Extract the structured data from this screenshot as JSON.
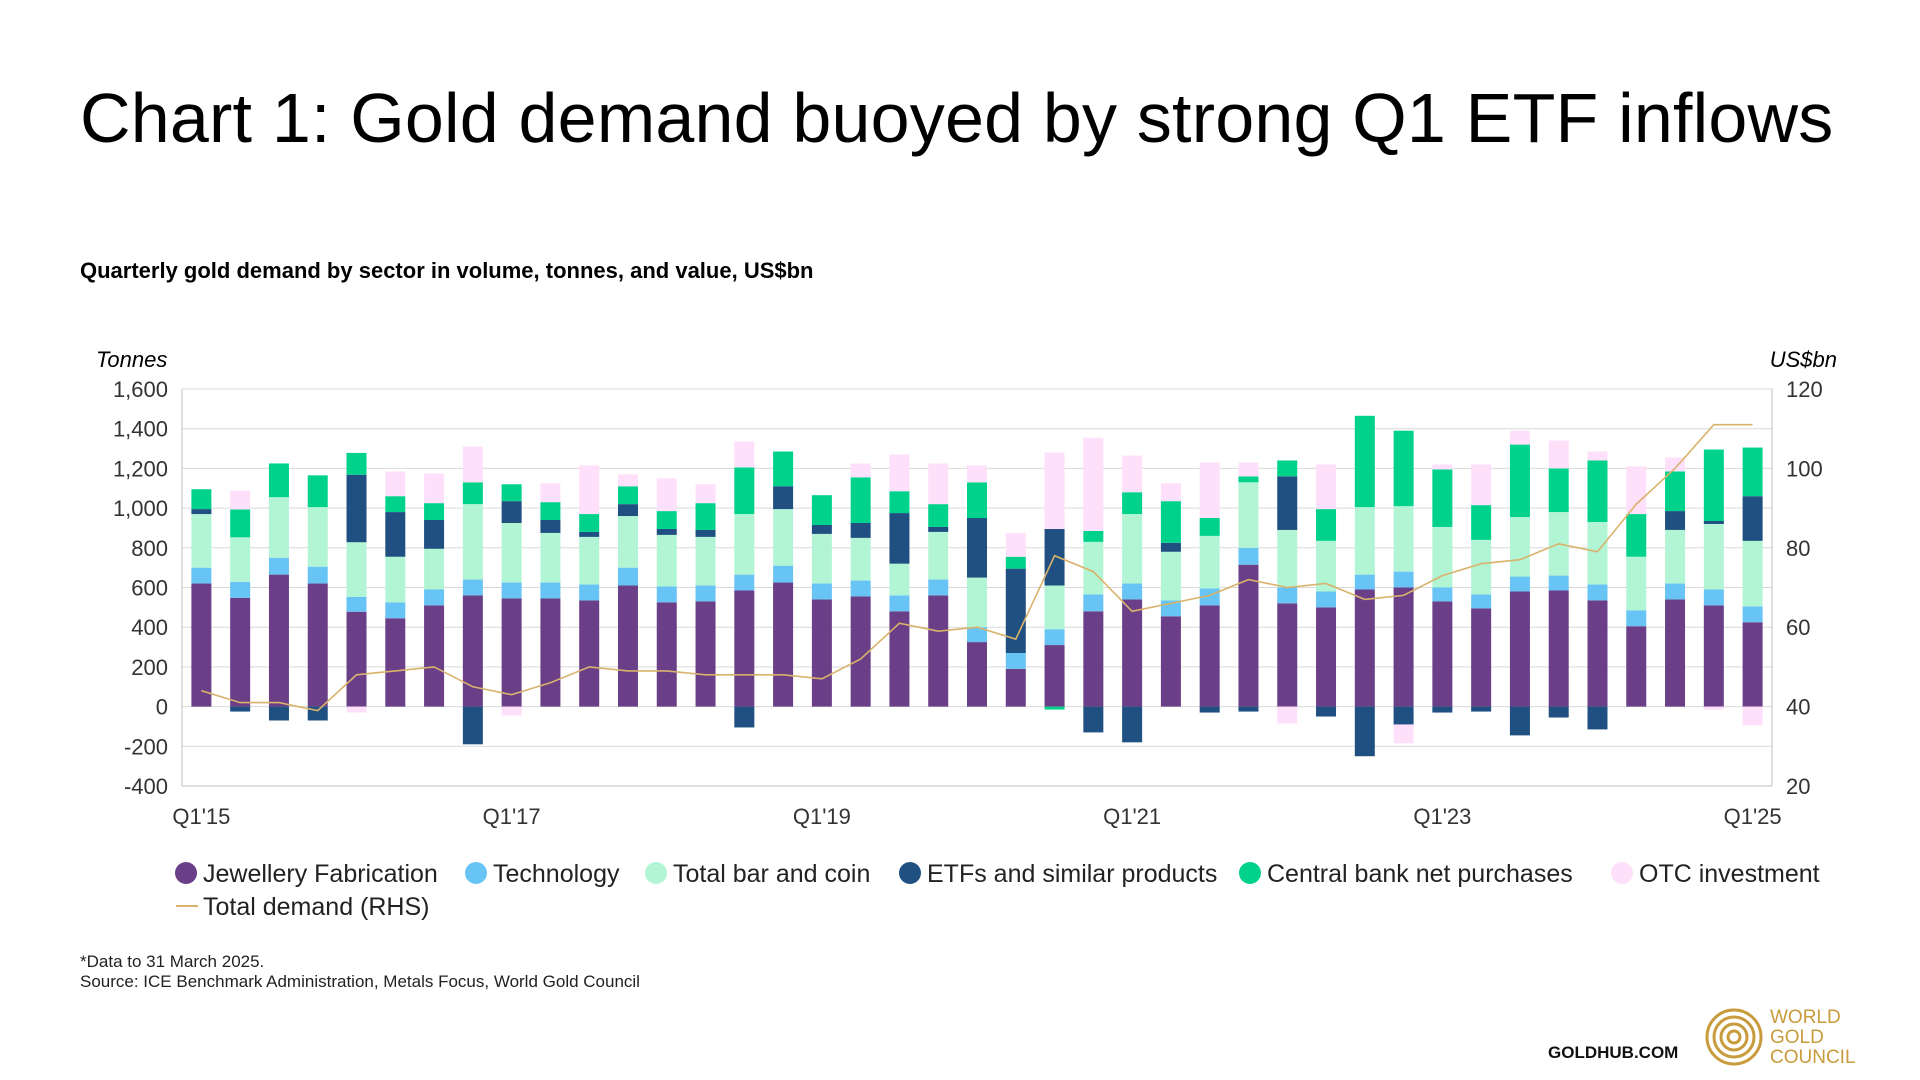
{
  "header": {
    "title": "Chart 1: Gold demand buoyed by strong Q1 ETF inflows",
    "subtitle": "Quarterly gold demand by sector in volume, tonnes, and value, US$bn"
  },
  "footer": {
    "note": "*Data to 31 March 2025.",
    "source": "Source: ICE Benchmark Administration, Metals Focus, World Gold Council",
    "site": "GOLDHUB.COM",
    "logo_lines": [
      "WORLD",
      "GOLD",
      "COUNCIL"
    ]
  },
  "chart_data": {
    "type": "bar",
    "stacked": true,
    "y_axis_label": "Tonnes",
    "y2_axis_label": "US$bn",
    "ylim": [
      -400,
      1600
    ],
    "y_ticks": [
      "1,600",
      "1,400",
      "1,200",
      "1,000",
      "800",
      "600",
      "400",
      "200",
      "0",
      "-200",
      "-400"
    ],
    "y2lim": [
      20,
      120
    ],
    "y2_ticks": [
      "120",
      "100",
      "80",
      "60",
      "40",
      "20"
    ],
    "x_tick_labels": [
      {
        "label": "Q1'15",
        "index": 0
      },
      {
        "label": "Q1'17",
        "index": 8
      },
      {
        "label": "Q1'19",
        "index": 16
      },
      {
        "label": "Q1'21",
        "index": 24
      },
      {
        "label": "Q1'23",
        "index": 32
      },
      {
        "label": "Q1'25",
        "index": 40
      }
    ],
    "grid": true,
    "legend_position": "bottom",
    "categories": [
      "Q1'15",
      "Q2'15",
      "Q3'15",
      "Q4'15",
      "Q1'16",
      "Q2'16",
      "Q3'16",
      "Q4'16",
      "Q1'17",
      "Q2'17",
      "Q3'17",
      "Q4'17",
      "Q1'18",
      "Q2'18",
      "Q3'18",
      "Q4'18",
      "Q1'19",
      "Q2'19",
      "Q3'19",
      "Q4'19",
      "Q1'20",
      "Q2'20",
      "Q3'20",
      "Q4'20",
      "Q1'21",
      "Q2'21",
      "Q3'21",
      "Q4'21",
      "Q1'22",
      "Q2'22",
      "Q3'22",
      "Q4'22",
      "Q1'23",
      "Q2'23",
      "Q3'23",
      "Q4'23",
      "Q1'24",
      "Q2'24",
      "Q3'24",
      "Q4'24",
      "Q1'25"
    ],
    "series": [
      {
        "name": "Jewellery Fabrication",
        "color": "#6B3F87",
        "values": [
          620,
          548,
          665,
          620,
          478,
          445,
          510,
          560,
          545,
          545,
          535,
          610,
          525,
          530,
          585,
          625,
          540,
          555,
          480,
          560,
          325,
          190,
          310,
          480,
          540,
          455,
          510,
          715,
          520,
          500,
          590,
          600,
          530,
          495,
          580,
          585,
          535,
          405,
          540,
          510,
          425
        ]
      },
      {
        "name": "Technology",
        "color": "#67C4F5",
        "values": [
          80,
          80,
          85,
          85,
          75,
          80,
          80,
          80,
          80,
          80,
          80,
          90,
          80,
          80,
          80,
          85,
          80,
          80,
          80,
          80,
          75,
          80,
          80,
          85,
          80,
          80,
          85,
          85,
          80,
          80,
          75,
          80,
          70,
          70,
          75,
          75,
          80,
          80,
          80,
          80,
          80
        ]
      },
      {
        "name": "Total bar and coin",
        "color": "#B2F5D5",
        "values": [
          270,
          225,
          305,
          300,
          275,
          230,
          205,
          380,
          300,
          250,
          240,
          260,
          260,
          245,
          305,
          285,
          250,
          215,
          160,
          240,
          250,
          0,
          220,
          265,
          350,
          245,
          265,
          330,
          290,
          255,
          340,
          330,
          305,
          275,
          300,
          320,
          315,
          270,
          270,
          330,
          330
        ]
      },
      {
        "name": "ETFs and similar products",
        "color": "#1F5081",
        "values": [
          25,
          -25,
          -70,
          -70,
          340,
          225,
          145,
          -190,
          110,
          65,
          25,
          60,
          30,
          35,
          -105,
          115,
          45,
          75,
          255,
          25,
          300,
          425,
          285,
          -130,
          -180,
          45,
          -30,
          -25,
          270,
          -50,
          -250,
          -90,
          -30,
          -25,
          -145,
          -55,
          -115,
          0,
          95,
          15,
          225
        ]
      },
      {
        "name": "Central bank net purchases",
        "color": "#00D28C",
        "values": [
          100,
          140,
          170,
          160,
          110,
          80,
          85,
          110,
          85,
          90,
          90,
          90,
          90,
          135,
          235,
          175,
          150,
          230,
          110,
          115,
          180,
          60,
          -15,
          55,
          110,
          210,
          90,
          30,
          80,
          160,
          460,
          380,
          290,
          175,
          365,
          220,
          310,
          215,
          200,
          360,
          245
        ]
      },
      {
        "name": "OTC investment",
        "color": "#FFE0FA",
        "values": [
          0,
          95,
          0,
          0,
          -30,
          125,
          150,
          180,
          -45,
          95,
          245,
          60,
          165,
          95,
          130,
          0,
          0,
          70,
          185,
          205,
          85,
          120,
          385,
          470,
          185,
          90,
          280,
          70,
          -85,
          225,
          0,
          -95,
          25,
          205,
          70,
          140,
          45,
          240,
          70,
          -15,
          -95
        ]
      }
    ],
    "line_series": {
      "name": "Total demand (RHS)",
      "color": "#D9B36C",
      "axis": "right",
      "values": [
        44,
        41,
        41,
        39,
        48,
        49,
        50,
        45,
        43,
        46,
        50,
        49,
        49,
        48,
        48,
        48,
        47,
        52,
        61,
        59,
        60,
        57,
        78,
        74,
        64,
        66,
        68,
        72,
        70,
        71,
        67,
        68,
        73,
        76,
        77,
        81,
        79,
        91,
        100,
        111,
        111
      ]
    }
  }
}
